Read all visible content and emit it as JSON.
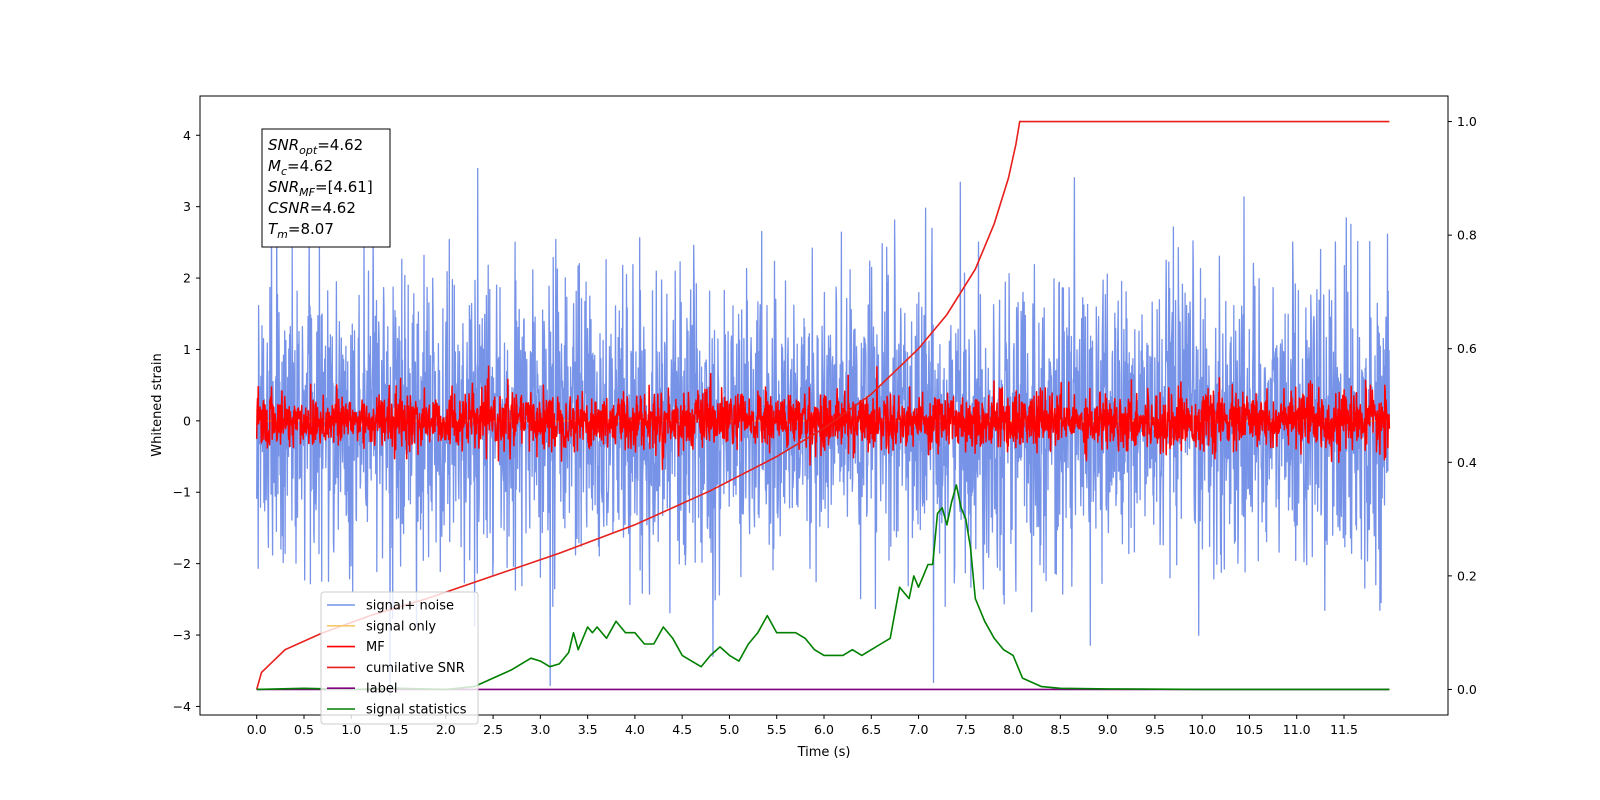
{
  "chart_data": {
    "type": "line",
    "xlabel": "Time (s)",
    "ylabel": "Whitened strain",
    "xlim": [
      -0.6,
      12.6
    ],
    "ylim": [
      -4.12,
      4.55
    ],
    "ylim_right": [
      -0.045,
      1.045
    ],
    "x_ticks": [
      "0.0",
      "0.5",
      "1.0",
      "1.5",
      "2.0",
      "2.5",
      "3.0",
      "3.5",
      "4.0",
      "4.5",
      "5.0",
      "5.5",
      "6.0",
      "6.5",
      "7.0",
      "7.5",
      "8.0",
      "8.5",
      "9.0",
      "9.5",
      "10.0",
      "10.5",
      "11.0",
      "11.5"
    ],
    "y_ticks_left": [
      "4",
      "3",
      "2",
      "1",
      "0",
      "−1",
      "−2",
      "−3",
      "−4"
    ],
    "y_ticks_right": [
      "1.0",
      "0.8",
      "0.6",
      "0.4",
      "0.2",
      "0.0"
    ],
    "grid": false,
    "legend_position": "lower-left",
    "annotation_box": [
      {
        "main": "SNR",
        "sub": "opt",
        "value": "=4.62"
      },
      {
        "main": "M",
        "sub": "c",
        "value": "=4.62"
      },
      {
        "main": "SNR",
        "sub": "MF",
        "value": "=[4.61]"
      },
      {
        "main": "CSNR",
        "sub": "",
        "value": "=4.62"
      },
      {
        "main": "T",
        "sub": "m",
        "value": "=8.07"
      }
    ],
    "series": [
      {
        "name": "signal+ noise",
        "axis": "left",
        "color": "#7793e8",
        "x_range": [
          0,
          11.98
        ],
        "noise_std": 1.0,
        "extent_note": "dense noise trace, roughly ±3.5"
      },
      {
        "name": "signal only",
        "axis": "left",
        "color": "#f5c96a",
        "x_range": [
          0,
          11.98
        ]
      },
      {
        "name": "MF",
        "axis": "left",
        "color": "#ff0000",
        "x_range": [
          0,
          11.98
        ],
        "noise_std": 0.2
      },
      {
        "name": "cumilative SNR",
        "axis": "right",
        "color": "#e8201c",
        "x": [
          0,
          0.05,
          0.3,
          0.7,
          1.2,
          1.8,
          2.5,
          3.2,
          4.0,
          4.8,
          5.5,
          6.0,
          6.5,
          7.0,
          7.3,
          7.6,
          7.8,
          7.95,
          8.03,
          8.07,
          8.2,
          9.0,
          10.0,
          11.0,
          11.98
        ],
        "y": [
          0,
          0.03,
          0.07,
          0.1,
          0.13,
          0.16,
          0.2,
          0.24,
          0.29,
          0.35,
          0.41,
          0.46,
          0.52,
          0.6,
          0.66,
          0.74,
          0.82,
          0.9,
          0.96,
          1.0,
          1.0,
          1.0,
          1.0,
          1.0,
          1.0
        ]
      },
      {
        "name": "label",
        "axis": "right",
        "color": "#800080",
        "x": [
          0,
          11.98
        ],
        "y": [
          0,
          0
        ]
      },
      {
        "name": "signal statistics",
        "axis": "right",
        "color": "#008000",
        "x": [
          0,
          0.5,
          1.0,
          1.5,
          2.0,
          2.3,
          2.5,
          2.7,
          2.9,
          3.0,
          3.1,
          3.2,
          3.3,
          3.35,
          3.4,
          3.5,
          3.55,
          3.6,
          3.7,
          3.8,
          3.9,
          4.0,
          4.1,
          4.2,
          4.3,
          4.4,
          4.5,
          4.6,
          4.7,
          4.8,
          4.9,
          5.0,
          5.1,
          5.2,
          5.3,
          5.4,
          5.5,
          5.6,
          5.7,
          5.8,
          5.9,
          6.0,
          6.1,
          6.2,
          6.3,
          6.4,
          6.5,
          6.6,
          6.7,
          6.8,
          6.9,
          6.95,
          7.0,
          7.05,
          7.1,
          7.15,
          7.2,
          7.25,
          7.3,
          7.35,
          7.4,
          7.45,
          7.5,
          7.55,
          7.6,
          7.7,
          7.8,
          7.9,
          8.0,
          8.1,
          8.3,
          8.5,
          9.0,
          10.0,
          11.98
        ],
        "y": [
          0,
          0.002,
          0,
          0.002,
          0,
          0.005,
          0.02,
          0.035,
          0.055,
          0.05,
          0.04,
          0.045,
          0.065,
          0.1,
          0.07,
          0.11,
          0.1,
          0.11,
          0.09,
          0.12,
          0.1,
          0.1,
          0.08,
          0.08,
          0.11,
          0.09,
          0.06,
          0.05,
          0.04,
          0.06,
          0.075,
          0.06,
          0.05,
          0.08,
          0.1,
          0.13,
          0.1,
          0.1,
          0.1,
          0.09,
          0.07,
          0.06,
          0.06,
          0.06,
          0.07,
          0.06,
          0.07,
          0.08,
          0.09,
          0.18,
          0.16,
          0.2,
          0.18,
          0.2,
          0.22,
          0.22,
          0.31,
          0.32,
          0.29,
          0.33,
          0.36,
          0.32,
          0.3,
          0.25,
          0.16,
          0.12,
          0.09,
          0.07,
          0.06,
          0.02,
          0.005,
          0.002,
          0.001,
          0,
          0
        ]
      }
    ]
  }
}
